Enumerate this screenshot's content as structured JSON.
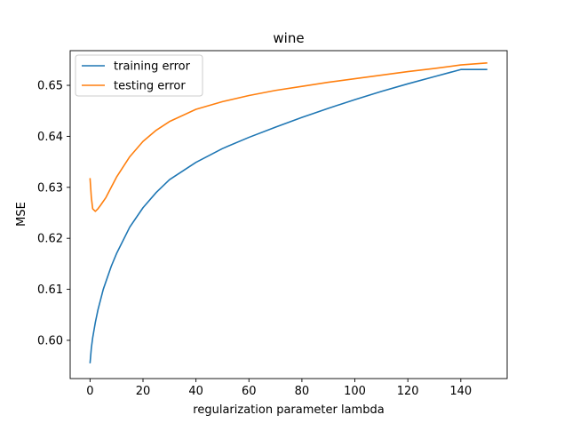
{
  "chart_data": {
    "type": "line",
    "title": "wine",
    "xlabel": "regularization parameter lambda",
    "ylabel": "MSE",
    "xlim": [
      -7.5,
      157.5
    ],
    "ylim": [
      0.5925,
      0.6568
    ],
    "xticks": [
      0,
      20,
      40,
      60,
      80,
      100,
      120,
      140
    ],
    "yticks": [
      0.6,
      0.61,
      0.62,
      0.63,
      0.64,
      0.65
    ],
    "ytick_labels": [
      "0.60",
      "0.61",
      "0.62",
      "0.63",
      "0.64",
      "0.65"
    ],
    "grid": false,
    "legend_position": "upper-left",
    "series": [
      {
        "name": "training error",
        "color": "#1f77b4",
        "points": [
          [
            0,
            0.5955
          ],
          [
            0.5,
            0.5985
          ],
          [
            1,
            0.6005
          ],
          [
            2,
            0.6035
          ],
          [
            3,
            0.606
          ],
          [
            5,
            0.61
          ],
          [
            8,
            0.6145
          ],
          [
            10,
            0.617
          ],
          [
            15,
            0.6222
          ],
          [
            20,
            0.626
          ],
          [
            25,
            0.629
          ],
          [
            30,
            0.6315
          ],
          [
            40,
            0.6349
          ],
          [
            50,
            0.6376
          ],
          [
            60,
            0.6398
          ],
          [
            70,
            0.6418
          ],
          [
            80,
            0.6437
          ],
          [
            90,
            0.6455
          ],
          [
            100,
            0.6472
          ],
          [
            110,
            0.6488
          ],
          [
            120,
            0.6503
          ],
          [
            130,
            0.6517
          ],
          [
            140,
            0.6531
          ],
          [
            150,
            0.6531
          ]
        ]
      },
      {
        "name": "testing error",
        "color": "#ff7f0e",
        "points": [
          [
            0,
            0.6318
          ],
          [
            0.5,
            0.628
          ],
          [
            1,
            0.6258
          ],
          [
            2,
            0.6253
          ],
          [
            3,
            0.6258
          ],
          [
            4,
            0.6265
          ],
          [
            6,
            0.628
          ],
          [
            8,
            0.63
          ],
          [
            10,
            0.632
          ],
          [
            15,
            0.636
          ],
          [
            20,
            0.639
          ],
          [
            25,
            0.6412
          ],
          [
            30,
            0.6429
          ],
          [
            40,
            0.6453
          ],
          [
            50,
            0.6468
          ],
          [
            60,
            0.648
          ],
          [
            70,
            0.649
          ],
          [
            80,
            0.6498
          ],
          [
            90,
            0.6506
          ],
          [
            100,
            0.6513
          ],
          [
            110,
            0.652
          ],
          [
            120,
            0.6527
          ],
          [
            130,
            0.6533
          ],
          [
            140,
            0.654
          ],
          [
            150,
            0.6544
          ]
        ]
      }
    ]
  }
}
